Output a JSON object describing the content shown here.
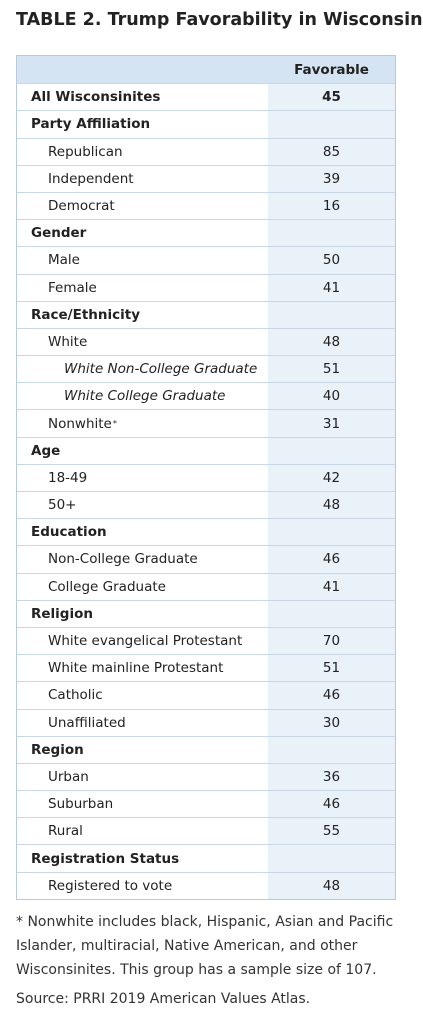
{
  "header": {
    "title": "TABLE 2. Trump Favorability in Wisconsin"
  },
  "table": {
    "column": "Favorable",
    "total": {
      "label": "All Wisconsinites",
      "value": 45
    },
    "groups": [
      {
        "label": "Party Affiliation",
        "rows": [
          {
            "label": "Republican",
            "value": 85
          },
          {
            "label": "Independent",
            "value": 39
          },
          {
            "label": "Democrat",
            "value": 16
          }
        ]
      },
      {
        "label": "Gender",
        "rows": [
          {
            "label": "Male",
            "value": 50
          },
          {
            "label": "Female",
            "value": 41
          }
        ]
      },
      {
        "label": "Race/Ethnicity",
        "rows": [
          {
            "label": "White",
            "value": 48,
            "rows": [
              {
                "label": "White Non-College Graduate",
                "value": 51
              },
              {
                "label": "White College Graduate",
                "value": 40
              }
            ]
          },
          {
            "label": "Nonwhite",
            "marker": "*",
            "value": 31
          }
        ]
      },
      {
        "label": "Age",
        "rows": [
          {
            "label": "18-49",
            "value": 42
          },
          {
            "label": "50+",
            "value": 48
          }
        ]
      },
      {
        "label": "Education",
        "rows": [
          {
            "label": "Non-College Graduate",
            "value": 46
          },
          {
            "label": "College Graduate",
            "value": 41
          }
        ]
      },
      {
        "label": "Religion",
        "rows": [
          {
            "label": "White evangelical Protestant",
            "value": 70
          },
          {
            "label": "White mainline Protestant",
            "value": 51
          },
          {
            "label": "Catholic",
            "value": 46
          },
          {
            "label": "Unaffiliated",
            "value": 30
          }
        ]
      },
      {
        "label": "Region",
        "rows": [
          {
            "label": "Urban",
            "value": 36
          },
          {
            "label": "Suburban",
            "value": 46
          },
          {
            "label": "Rural",
            "value": 55
          }
        ]
      },
      {
        "label": "Registration Status",
        "rows": [
          {
            "label": "Registered to vote",
            "value": 48
          }
        ]
      }
    ]
  },
  "footnote": "* Nonwhite includes black, Hispanic, Asian and Pacific Islander, multiracial, Native American, and other Wisconsinites. This group has a sample size of 107.",
  "source": "Source: PRRI 2019 American Values Atlas."
}
